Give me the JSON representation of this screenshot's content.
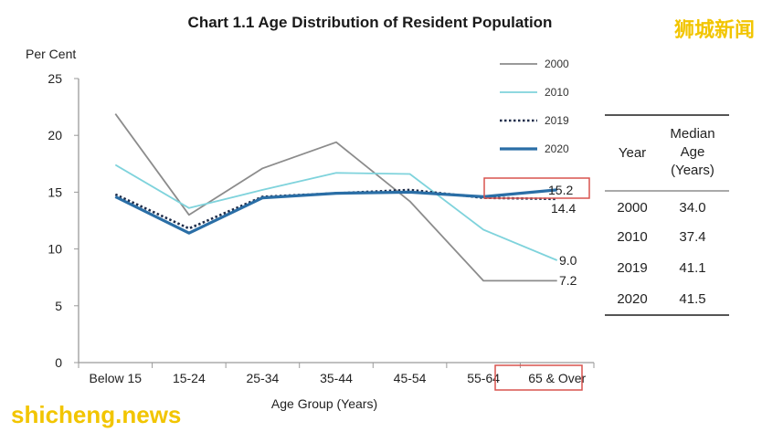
{
  "chart_data": {
    "type": "line",
    "title": "Chart 1.1  Age Distribution of Resident Population",
    "ylabel": "Per Cent",
    "xlabel": "Age Group (Years)",
    "categories": [
      "Below 15",
      "15-24",
      "25-34",
      "35-44",
      "45-54",
      "55-64",
      "65 & Over"
    ],
    "ylim": [
      0,
      25
    ],
    "yticks": [
      0,
      5,
      10,
      15,
      20,
      25
    ],
    "grid": false,
    "legend_position": "top-right",
    "series": [
      {
        "name": "2000",
        "color": "#8c8c8c",
        "style": "solid",
        "values": [
          21.9,
          13.0,
          17.1,
          19.4,
          14.2,
          7.2,
          7.2
        ]
      },
      {
        "name": "2010",
        "color": "#7fd3dc",
        "style": "solid",
        "values": [
          17.4,
          13.6,
          15.2,
          16.7,
          16.6,
          11.7,
          9.0
        ]
      },
      {
        "name": "2019",
        "color": "#1f2d4a",
        "style": "dotted",
        "values": [
          14.8,
          11.8,
          14.6,
          14.9,
          15.2,
          14.5,
          14.4
        ]
      },
      {
        "name": "2020",
        "color": "#2a6ea6",
        "style": "solid",
        "values": [
          14.6,
          11.4,
          14.5,
          14.9,
          15.0,
          14.6,
          15.2
        ]
      }
    ],
    "end_labels": [
      "15.2",
      "14.4",
      "9.0",
      "7.2"
    ],
    "highlight_color": "#d9534f"
  },
  "median_age_table": {
    "headers": [
      "Year",
      "Median\nAge\n(Years)"
    ],
    "rows": [
      [
        "2000",
        "34.0"
      ],
      [
        "2010",
        "37.4"
      ],
      [
        "2019",
        "41.1"
      ],
      [
        "2020",
        "41.5"
      ]
    ]
  },
  "watermarks": {
    "top_right": "狮城新闻",
    "bottom_left": "shicheng.news"
  }
}
